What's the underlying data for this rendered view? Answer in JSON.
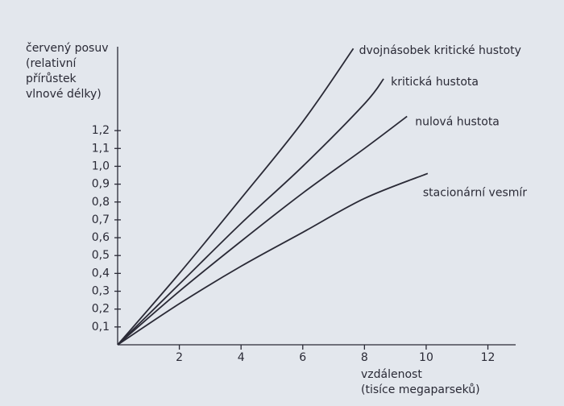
{
  "chart_data": {
    "type": "line",
    "ylabel": [
      "červený posuv",
      "(relativní",
      "přírůstek",
      "vlnové délky)"
    ],
    "xlabel": [
      "vzdálenost",
      "(tisíce megaparseků)"
    ],
    "xlim": [
      0,
      12.9
    ],
    "ylim": [
      0,
      1.67
    ],
    "xticks": [
      2,
      4,
      6,
      8,
      10,
      12
    ],
    "yticks": [
      {
        "value": 0.1,
        "label": "0,1"
      },
      {
        "value": 0.2,
        "label": "0,2"
      },
      {
        "value": 0.3,
        "label": "0,3"
      },
      {
        "value": 0.4,
        "label": "0,4"
      },
      {
        "value": 0.5,
        "label": "0,5"
      },
      {
        "value": 0.6,
        "label": "0,6"
      },
      {
        "value": 0.7,
        "label": "0,7"
      },
      {
        "value": 0.8,
        "label": "0,8"
      },
      {
        "value": 0.9,
        "label": "0,9"
      },
      {
        "value": 1.0,
        "label": "1,0"
      },
      {
        "value": 1.1,
        "label": "1,1"
      },
      {
        "value": 1.2,
        "label": "1,2"
      }
    ],
    "series": [
      {
        "name": "dvojnásobek kritické hustoty",
        "color": "#2a2a36",
        "x": [
          0,
          2,
          4,
          6,
          7.64
        ],
        "values": [
          0,
          0.4,
          0.82,
          1.25,
          1.66
        ]
      },
      {
        "name": "kritická hustota",
        "color": "#2a2a36",
        "x": [
          0,
          2,
          4,
          6,
          8,
          8.62
        ],
        "values": [
          0,
          0.34,
          0.68,
          1.0,
          1.35,
          1.49
        ]
      },
      {
        "name": "nulová hustota",
        "color": "#2a2a36",
        "x": [
          0,
          2,
          4,
          6,
          8,
          9.38
        ],
        "values": [
          0,
          0.3,
          0.58,
          0.85,
          1.1,
          1.28
        ]
      },
      {
        "name": "stacionární vesmír",
        "color": "#2a2a36",
        "x": [
          0,
          2,
          4,
          6,
          8,
          10.05
        ],
        "values": [
          0,
          0.23,
          0.44,
          0.63,
          0.82,
          0.96
        ]
      }
    ]
  }
}
